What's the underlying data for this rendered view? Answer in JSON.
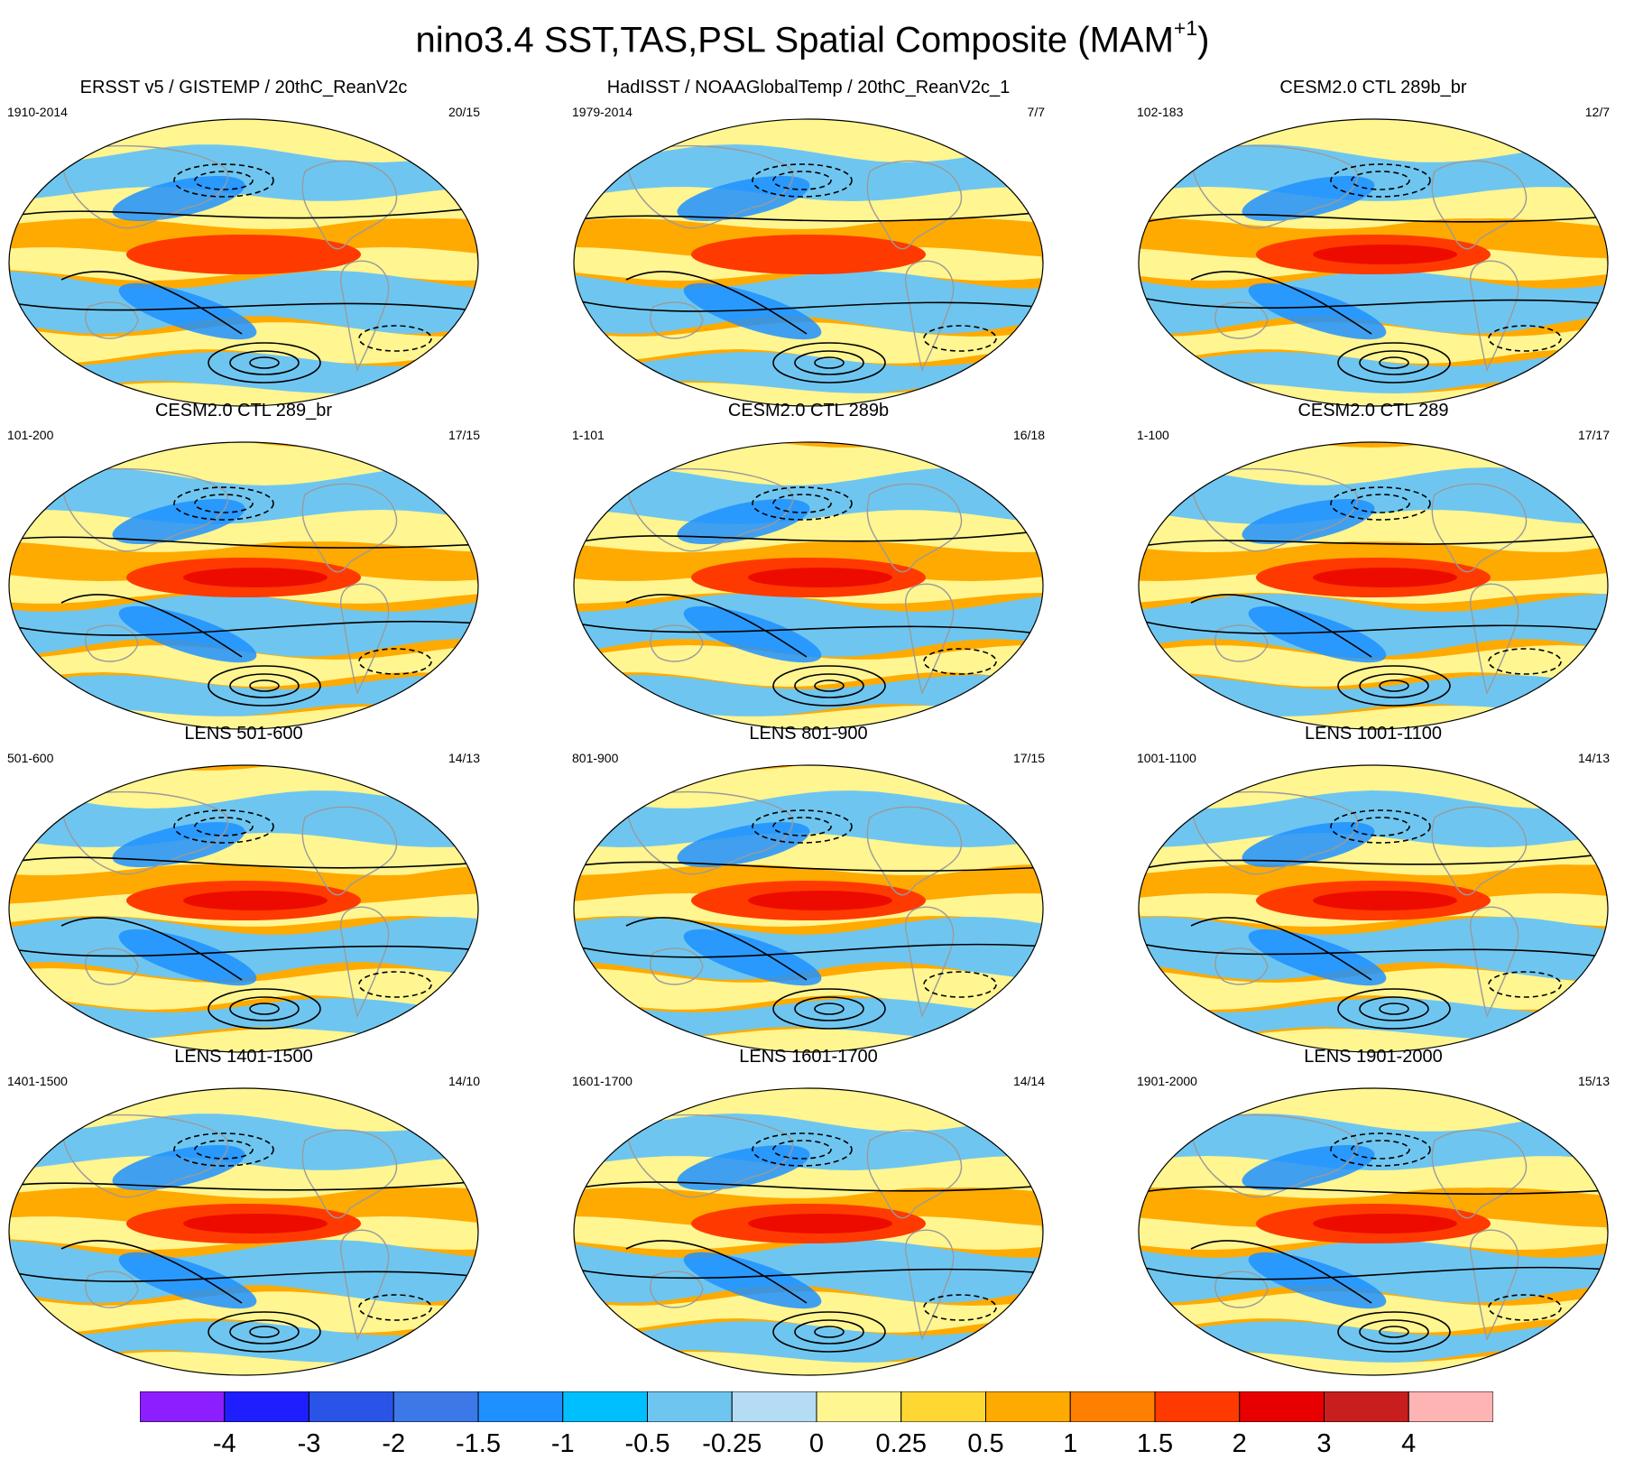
{
  "figure": {
    "title_main": "nino3.4 SST,TAS,PSL Spatial Composite (MAM",
    "title_sup": "+1",
    "title_close": ")"
  },
  "panels": [
    {
      "title": "ERSST v5 / GISTEMP / 20thC_ReanV2c",
      "years": "1910-2014",
      "count": "20/15"
    },
    {
      "title": "HadISST / NOAAGlobalTemp / 20thC_ReanV2c_1",
      "years": "1979-2014",
      "count": "7/7"
    },
    {
      "title": "CESM2.0 CTL 289b_br",
      "years": "102-183",
      "count": "12/7"
    },
    {
      "title": "CESM2.0 CTL 289_br",
      "years": "101-200",
      "count": "17/15"
    },
    {
      "title": "CESM2.0 CTL 289b",
      "years": "1-101",
      "count": "16/18"
    },
    {
      "title": "CESM2.0 CTL 289",
      "years": "1-100",
      "count": "17/17"
    },
    {
      "title": "LENS 501-600",
      "years": "501-600",
      "count": "14/13"
    },
    {
      "title": "LENS 801-900",
      "years": "801-900",
      "count": "17/15"
    },
    {
      "title": "LENS 1001-1100",
      "years": "1001-1100",
      "count": "14/13"
    },
    {
      "title": "LENS 1401-1500",
      "years": "1401-1500",
      "count": "14/10"
    },
    {
      "title": "LENS 1601-1700",
      "years": "1601-1700",
      "count": "14/14"
    },
    {
      "title": "LENS 1901-2000",
      "years": "1901-2000",
      "count": "15/13"
    }
  ],
  "colorbar": {
    "colors": [
      "#8c1eff",
      "#1e1eff",
      "#2a53e8",
      "#3c78e8",
      "#1e90ff",
      "#00bfff",
      "#6ec6f0",
      "#b4dcf5",
      "#fff591",
      "#ffd733",
      "#ffaa00",
      "#ff7f00",
      "#ff3a00",
      "#e80000",
      "#c81e1e",
      "#ffb4b4"
    ],
    "labels": [
      "-4",
      "-3",
      "-2",
      "-1.5",
      "-1",
      "-0.5",
      "-0.25",
      "0",
      "0.25",
      "0.5",
      "1",
      "1.5",
      "2",
      "3",
      "4"
    ]
  },
  "palette": {
    "warm": "#ffaa00",
    "light_warm": "#fff591",
    "hot": "#ff3a00",
    "cool": "#6ec6f0",
    "cold": "#1e90ff",
    "land_outline": "#9a9a9a",
    "contour": "#000000"
  }
}
